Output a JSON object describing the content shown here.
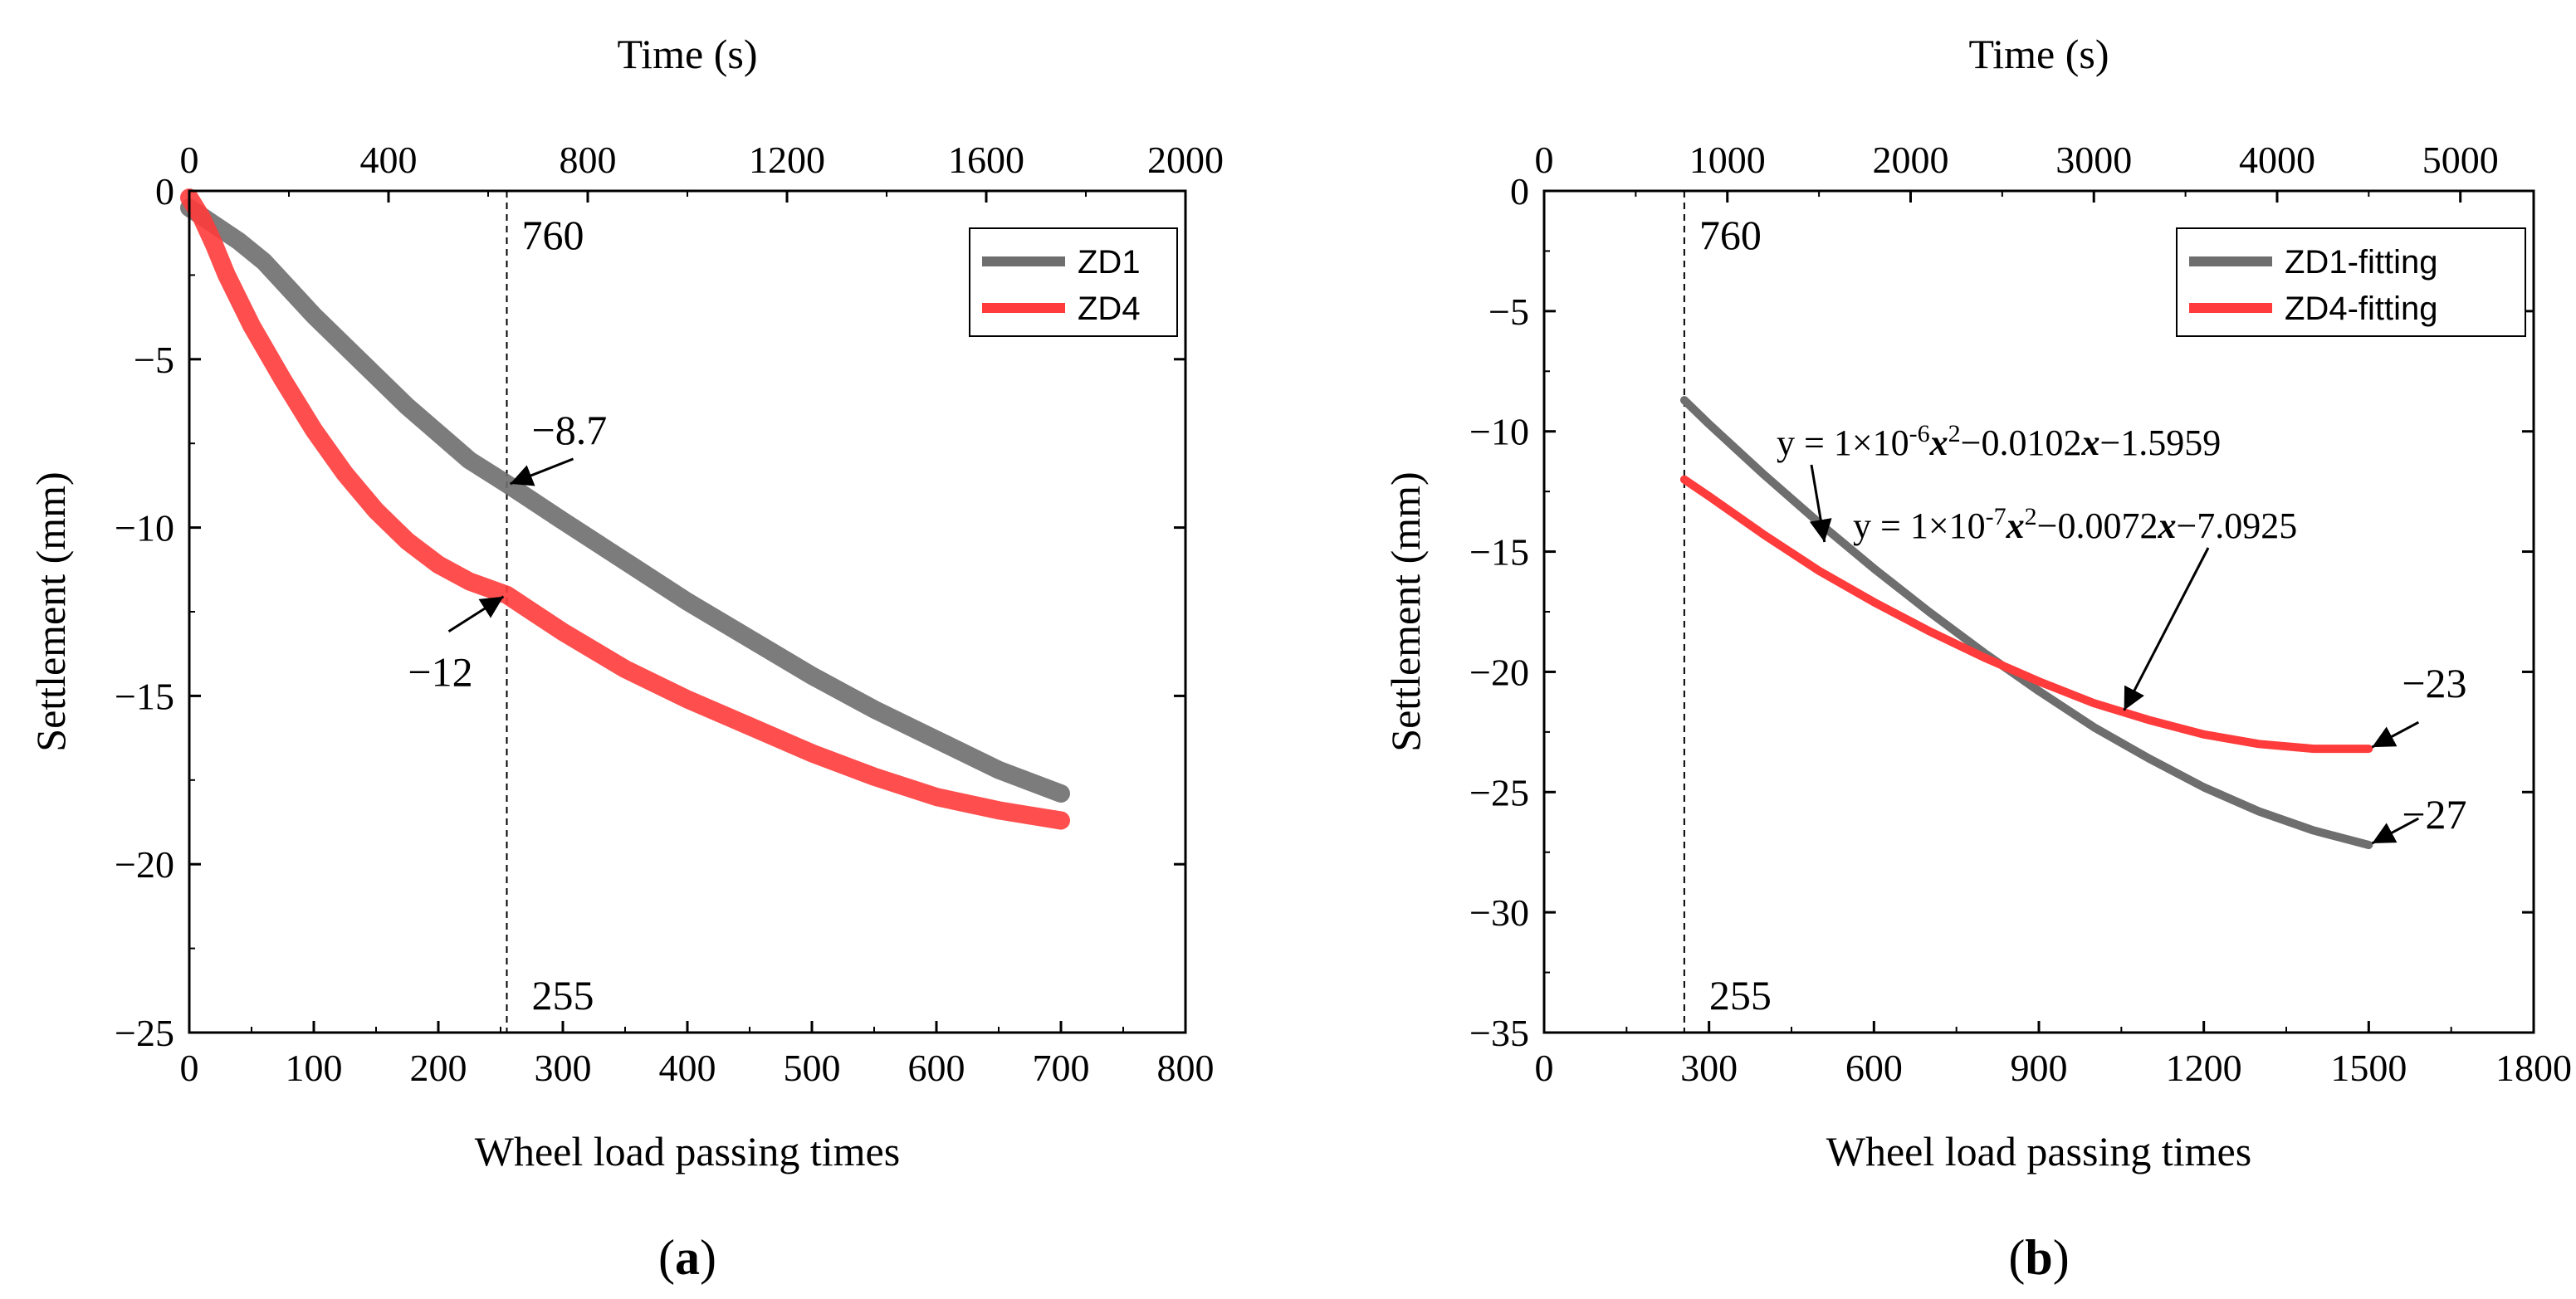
{
  "chart_data": [
    {
      "panel_label": "(a)",
      "type": "line",
      "xlabel": "Wheel load passing times",
      "x2label": "Time (s)",
      "ylabel": "Settlement (mm)",
      "xlim": [
        0,
        800
      ],
      "x2lim": [
        0,
        2000
      ],
      "ylim": [
        -25,
        0
      ],
      "x_ticks": [
        0,
        100,
        200,
        300,
        400,
        500,
        600,
        700,
        800
      ],
      "x2_ticks": [
        0,
        400,
        800,
        1200,
        1600,
        2000
      ],
      "y_ticks": [
        0,
        -5,
        -10,
        -15,
        -20,
        -25
      ],
      "x_tick_labels": [
        "0",
        "100",
        "200",
        "300",
        "400",
        "500",
        "600",
        "700",
        "800"
      ],
      "x2_tick_labels": [
        "0",
        "400",
        "800",
        "1200",
        "1600",
        "2000"
      ],
      "y_tick_labels": [
        "0",
        "−5",
        "−10",
        "−15",
        "−20",
        "−25"
      ],
      "legend": "top-right",
      "series": [
        {
          "name": "ZD1",
          "color": "#6e6e6e",
          "x": [
            0,
            20,
            40,
            60,
            80,
            100,
            125,
            150,
            175,
            200,
            225,
            255,
            300,
            350,
            400,
            450,
            500,
            550,
            600,
            650,
            700
          ],
          "y": [
            -0.5,
            -1.0,
            -1.5,
            -2.1,
            -2.9,
            -3.7,
            -4.6,
            -5.5,
            -6.4,
            -7.2,
            -8.0,
            -8.7,
            -9.8,
            -11.0,
            -12.2,
            -13.3,
            -14.4,
            -15.4,
            -16.3,
            -17.2,
            -17.9
          ]
        },
        {
          "name": "ZD4",
          "color": "#ff3b3b",
          "x": [
            0,
            10,
            20,
            30,
            50,
            75,
            100,
            125,
            150,
            175,
            200,
            225,
            255,
            300,
            350,
            400,
            450,
            500,
            550,
            600,
            650,
            700
          ],
          "y": [
            -0.2,
            -0.8,
            -1.6,
            -2.5,
            -4.0,
            -5.6,
            -7.1,
            -8.4,
            -9.5,
            -10.4,
            -11.1,
            -11.6,
            -12.0,
            -13.1,
            -14.2,
            -15.1,
            -15.9,
            -16.7,
            -17.4,
            -18.0,
            -18.4,
            -18.7
          ]
        }
      ],
      "reference_line": {
        "x": 255,
        "label_top": "760",
        "label_bottom": "255"
      },
      "annotations": [
        {
          "text": "−8.7",
          "x": 255,
          "y": -8.7
        },
        {
          "text": "−12",
          "x": 255,
          "y": -12
        }
      ]
    },
    {
      "panel_label": "(b)",
      "type": "line",
      "xlabel": "Wheel load passing times",
      "x2label": "Time (s)",
      "ylabel": "Settlement (mm)",
      "xlim": [
        0,
        1800
      ],
      "x2lim": [
        0,
        5400
      ],
      "ylim": [
        -35,
        0
      ],
      "x_ticks": [
        0,
        300,
        600,
        900,
        1200,
        1500,
        1800
      ],
      "x2_ticks": [
        0,
        1000,
        2000,
        3000,
        4000,
        5000
      ],
      "y_ticks": [
        0,
        -5,
        -10,
        -15,
        -20,
        -25,
        -30,
        -35
      ],
      "x_tick_labels": [
        "0",
        "300",
        "600",
        "900",
        "1200",
        "1500",
        "1800"
      ],
      "x2_tick_labels": [
        "0",
        "1000",
        "2000",
        "3000",
        "4000",
        "5000"
      ],
      "y_tick_labels": [
        "0",
        "−5",
        "−10",
        "−15",
        "−20",
        "−25",
        "−30",
        "−35"
      ],
      "legend": "top-right",
      "series": [
        {
          "name": "ZD1-fitting",
          "color": "#6e6e6e",
          "x": [
            255,
            300,
            400,
            500,
            600,
            700,
            800,
            900,
            1000,
            1100,
            1200,
            1300,
            1400,
            1500
          ],
          "y": [
            -8.7,
            -9.7,
            -11.8,
            -13.8,
            -15.7,
            -17.5,
            -19.2,
            -20.8,
            -22.3,
            -23.6,
            -24.8,
            -25.8,
            -26.6,
            -27.2
          ]
        },
        {
          "name": "ZD4-fitting",
          "color": "#ff3b3b",
          "x": [
            255,
            300,
            400,
            500,
            600,
            700,
            800,
            900,
            1000,
            1100,
            1200,
            1300,
            1400,
            1500
          ],
          "y": [
            -12.0,
            -12.7,
            -14.3,
            -15.8,
            -17.1,
            -18.3,
            -19.4,
            -20.4,
            -21.3,
            -22.0,
            -22.6,
            -23.0,
            -23.2,
            -23.2
          ]
        }
      ],
      "reference_line": {
        "x": 255,
        "label_top": "760",
        "label_bottom": "255"
      },
      "equations": [
        {
          "pre": "y = 1×10",
          "exp": "-6",
          "mid1": "x",
          "sup2": "2",
          "rest": "−0.0102",
          "xvar": "x",
          "tail": "−1.5959"
        },
        {
          "pre": "y = 1×10",
          "exp": "-7",
          "mid1": "x",
          "sup2": "2",
          "rest": "−0.0072",
          "xvar": "x",
          "tail": "−7.0925"
        }
      ],
      "annotations": [
        {
          "text": "−23",
          "x": 1500,
          "y": -23.2
        },
        {
          "text": "−27",
          "x": 1500,
          "y": -27.2
        }
      ]
    }
  ]
}
